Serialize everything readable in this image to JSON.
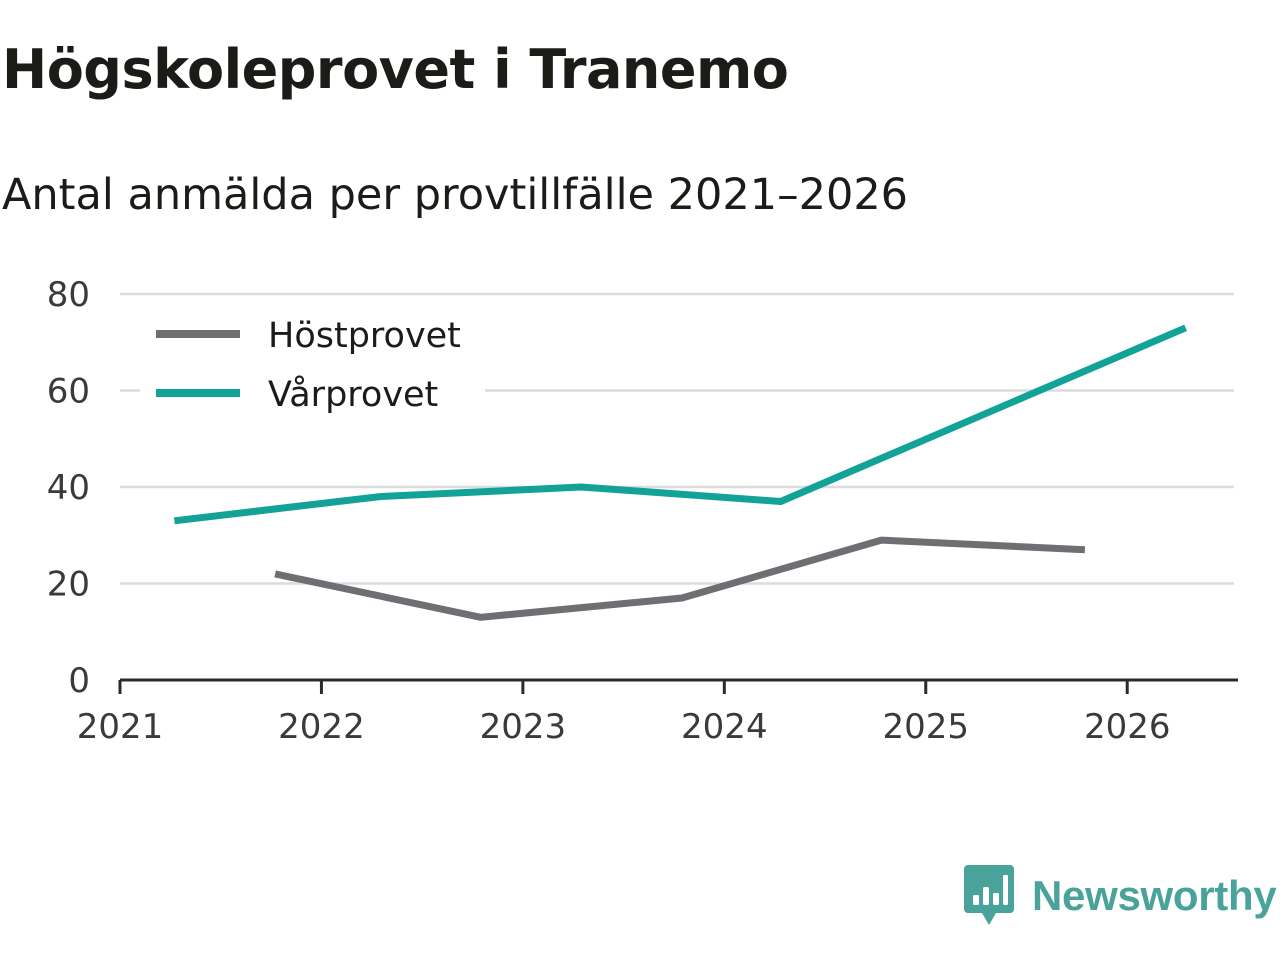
{
  "brand": {
    "name": "Newsworthy",
    "color": "#4aa39a",
    "icon": "bar-chart-speech-bubble-icon"
  },
  "chart_data": {
    "type": "line",
    "title": "Högskoleprovet i Tranemo",
    "subtitle": "Antal anmälda per provtillfälle 2021–2026",
    "xlabel": "",
    "ylabel": "",
    "xlim": [
      2021,
      2026.55
    ],
    "ylim": [
      0,
      80
    ],
    "x_ticks": [
      2021,
      2022,
      2023,
      2024,
      2025,
      2026
    ],
    "x_tick_labels": [
      "2021",
      "2022",
      "2023",
      "2024",
      "2025",
      "2026"
    ],
    "y_ticks": [
      0,
      20,
      40,
      60,
      80
    ],
    "y_tick_labels": [
      "0",
      "20",
      "40",
      "60",
      "80"
    ],
    "grid": true,
    "legend_position": "top-left",
    "series": [
      {
        "name": "Höstprovet",
        "color": "#6e6e73",
        "points": [
          {
            "x": 2021.77,
            "y": 22
          },
          {
            "x": 2022.79,
            "y": 13
          },
          {
            "x": 2023.79,
            "y": 17
          },
          {
            "x": 2024.78,
            "y": 29
          },
          {
            "x": 2025.79,
            "y": 27
          }
        ]
      },
      {
        "name": "Vårprovet",
        "color": "#12a298",
        "points": [
          {
            "x": 2021.27,
            "y": 33
          },
          {
            "x": 2022.29,
            "y": 38
          },
          {
            "x": 2023.29,
            "y": 40
          },
          {
            "x": 2024.28,
            "y": 37
          },
          {
            "x": 2026.29,
            "y": 73
          }
        ]
      }
    ]
  }
}
